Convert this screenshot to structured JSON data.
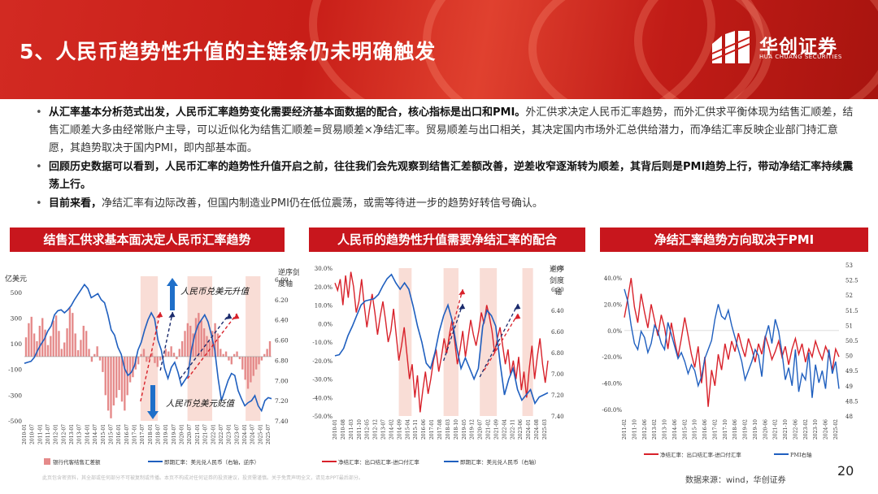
{
  "header": {
    "title": "5、人民币趋势性升值的主链条仍未明确触发",
    "logo_cn": "华创证券",
    "logo_en": "HUA CHUANG SECURITIES"
  },
  "bullets": [
    {
      "bold": "从汇率基本分析范式出发，人民币汇率趋势变化需要经济基本面数据的配合，核心指标是出口和PMI。",
      "text": "外汇供求决定人民币汇率趋势，而外汇供求平衡体现为结售汇顺差，结售汇顺差大多由经常账户主导，可以近似化为结售汇顺差=贸易顺差×净结汇率。贸易顺差与出口相关，其决定国内市场外汇总供给潜力，而净结汇率反映企业部门持汇意愿，其趋势取决于国内PMI，即内部基本面。"
    },
    {
      "bold": "回顾历史数据可以看到，人民币汇率的趋势性升值开启之前，往往我们会先观察到结售汇差额改善，逆差收窄逐渐转为顺差，其背后则是PMI趋势上行，带动净结汇率持续震荡上行。",
      "text": ""
    },
    {
      "bold": "目前来看，",
      "text": "净结汇率有边际改善，但国内制造业PMI仍在低位震荡，或需等待进一步的趋势好转信号确认。"
    }
  ],
  "panels": {
    "left_title": "结售汇供求基本面决定人民币汇率趋势",
    "mid_title": "人民币的趋势性升值需要净结汇率的配合",
    "right_title": "净结汇率趋势方向取决于PMI"
  },
  "footer": {
    "note": "此页包含密资料，其全部或任何部分不可被复制或传播。本页不构成对任何证券的投资建议，投资需谨慎。关于免责声明全文，请见本PPT最后部分。",
    "source": "数据来源：wind，华创证券",
    "page": "20"
  },
  "chart_data": [
    {
      "type": "bar",
      "ylabel_left": "亿美元",
      "ylabel_right": "逆序剑度轴",
      "left_ticks": [
        "500",
        "300",
        "100",
        "-100",
        "-300",
        "-500"
      ],
      "right_ticks": [
        "6.00",
        "6.20",
        "6.40",
        "6.60",
        "6.80",
        "7.00",
        "7.20",
        "7.40"
      ],
      "ylim_left": [
        -500,
        600
      ],
      "ylim_right": [
        7.4,
        6.0
      ],
      "x_ticks": [
        "2010-01",
        "2010-07",
        "2011-01",
        "2011-07",
        "2012-01",
        "2012-07",
        "2013-01",
        "2013-07",
        "2014-01",
        "2014-07",
        "2015-01",
        "2015-07",
        "2016-01",
        "2016-07",
        "2017-01",
        "2017-07",
        "2018-01",
        "2018-07",
        "2019-01",
        "2019-07",
        "2020-01",
        "2020-07",
        "2021-01",
        "2021-07",
        "2022-01",
        "2022-07",
        "2023-01",
        "2023-07",
        "2024-01",
        "2024-07",
        "2025-01",
        "2025-07"
      ],
      "annotations": [
        "人民币兑美元升值",
        "人民币兑美元贬值"
      ],
      "legend": [
        "银行代客结售汇差额",
        "即期汇率：美元兑人民币（右轴，逆序）"
      ],
      "colors": {
        "bar": "#e58a8a",
        "line": "#1f5fbf",
        "shade": "#f9ddd6",
        "arrow_up": "#1f6fc9",
        "arrow_down": "#1f6fc9"
      },
      "series": [
        {
          "name": "银行代客结售汇差额",
          "values": [
            150,
            260,
            310,
            180,
            120,
            240,
            300,
            210,
            90,
            160,
            280,
            320,
            200,
            60,
            110,
            220,
            380,
            340,
            180,
            50,
            130,
            240,
            200,
            60,
            -40,
            20,
            80,
            -30,
            -120,
            -300,
            -420,
            -480,
            -380,
            -320,
            -260,
            -350,
            -420,
            -300,
            -200,
            -160,
            -100,
            -60,
            20,
            60,
            -40,
            -20,
            30,
            -50,
            -80,
            -30,
            10,
            60,
            40,
            80,
            30,
            -20,
            60,
            120,
            200,
            260,
            240,
            180,
            300,
            340,
            280,
            220,
            160,
            120,
            200,
            260,
            180,
            60,
            20,
            40,
            -30,
            -60,
            20,
            40,
            -20,
            -100,
            -180,
            -250,
            -200,
            -150,
            -100,
            -60,
            -30,
            20,
            60,
            120
          ]
        },
        {
          "name": "即期汇率：美元兑人民币（右轴，逆序）",
          "values": [
            6.83,
            6.82,
            6.81,
            6.77,
            6.7,
            6.64,
            6.59,
            6.51,
            6.46,
            6.35,
            6.31,
            6.3,
            6.33,
            6.3,
            6.26,
            6.2,
            6.15,
            6.1,
            6.05,
            6.09,
            6.18,
            6.16,
            6.14,
            6.2,
            6.23,
            6.35,
            6.5,
            6.55,
            6.67,
            6.74,
            6.88,
            6.95,
            6.92,
            6.85,
            6.7,
            6.62,
            6.5,
            6.4,
            6.33,
            6.39,
            6.6,
            6.7,
            6.88,
            6.98,
            6.87,
            6.82,
            6.92,
            7.05,
            7.0,
            6.95,
            6.7,
            6.55,
            6.45,
            6.4,
            6.35,
            6.42,
            6.55,
            6.7,
            6.98,
            7.2,
            7.1,
            7.0,
            6.93,
            6.95,
            7.1,
            7.18,
            7.25,
            7.22,
            7.2,
            7.15,
            7.25,
            7.3,
            7.2,
            7.17,
            7.18
          ]
        }
      ]
    },
    {
      "type": "line",
      "left_ticks": [
        "30.0%",
        "20.0%",
        "10.0%",
        "0.0%",
        "-10.0%",
        "-20.0%",
        "-30.0%",
        "-40.0%",
        "-50.0%"
      ],
      "right_ticks": [
        "6.00",
        "6.20",
        "6.40",
        "6.60",
        "6.80",
        "7.00",
        "7.20",
        "7.40"
      ],
      "ylabel_right": "逆序剑度轴",
      "ylim_left": [
        -50,
        30
      ],
      "ylim_right": [
        7.4,
        6.0
      ],
      "x_ticks": [
        "2010-01",
        "2010-08",
        "2011-03",
        "2011-10",
        "2012-05",
        "2012-12",
        "2013-07",
        "2014-02",
        "2014-09",
        "2015-04",
        "2015-11",
        "2016-06",
        "2017-01",
        "2017-08",
        "2018-03",
        "2018-10",
        "2019-05",
        "2019-12",
        "2020-07",
        "2021-02",
        "2021-09",
        "2022-04",
        "2022-11",
        "2023-06",
        "2024-01",
        "2024-08",
        "2025-03"
      ],
      "legend": [
        "净结汇率：出口结汇率-进口付汇率",
        "即期汇率：美元兑人民币（右轴）"
      ],
      "colors": {
        "s1": "#d8212a",
        "s2": "#1f5fbf",
        "shade": "#f9ddd6"
      },
      "series": [
        {
          "name": "净结汇率：出口结汇率-进口付汇率",
          "values": [
            22,
            18,
            24,
            10,
            26,
            14,
            28,
            20,
            6,
            12,
            24,
            10,
            -2,
            8,
            16,
            6,
            -6,
            4,
            12,
            2,
            -10,
            -4,
            8,
            -6,
            -20,
            -12,
            -2,
            -16,
            -30,
            -22,
            -40,
            -28,
            -48,
            -36,
            -26,
            -38,
            -30,
            -20,
            -14,
            -26,
            -18,
            -8,
            -16,
            -6,
            2,
            -10,
            -22,
            -14,
            -4,
            -18,
            -8,
            2,
            -6,
            -12,
            -4,
            6,
            0,
            10,
            4,
            -4,
            -16,
            -8,
            -2,
            -12,
            -22,
            -14,
            -28,
            -20,
            -30,
            -18,
            -36,
            -26,
            -40,
            -24,
            -12,
            -30,
            -18,
            -8,
            -22,
            -32,
            -20
          ]
        },
        {
          "name": "即期汇率：美元兑人民币（右轴）",
          "values": [
            6.83,
            6.82,
            6.76,
            6.64,
            6.55,
            6.45,
            6.35,
            6.31,
            6.3,
            6.29,
            6.25,
            6.17,
            6.1,
            6.06,
            6.14,
            6.2,
            6.14,
            6.2,
            6.36,
            6.55,
            6.7,
            6.9,
            6.95,
            6.8,
            6.6,
            6.45,
            6.35,
            6.5,
            6.75,
            6.95,
            6.85,
            6.95,
            7.05,
            6.95,
            6.55,
            6.4,
            6.45,
            6.55,
            6.9,
            7.2,
            7.05,
            6.95,
            7.15,
            7.25,
            7.2,
            7.15,
            7.28,
            7.22,
            7.2,
            7.18
          ]
        }
      ]
    },
    {
      "type": "line",
      "left_ticks": [
        "40.0%",
        "20.0%",
        "0.0%",
        "-20.0%",
        "-40.0%",
        "-60.0%"
      ],
      "right_ticks": [
        "53",
        "52.5",
        "52",
        "51.5",
        "51",
        "50.5",
        "50",
        "49.5",
        "49",
        "48.5",
        "48"
      ],
      "ylim_left": [
        -65,
        50
      ],
      "ylim_right": [
        48,
        53
      ],
      "x_ticks": [
        "2011-02",
        "2011-10",
        "2012-06",
        "2013-02",
        "2013-10",
        "2014-06",
        "2015-02",
        "2015-10",
        "2016-06",
        "2017-02",
        "2017-10",
        "2018-06",
        "2019-02",
        "2019-10",
        "2020-06",
        "2021-02",
        "2021-10",
        "2022-06",
        "2023-02",
        "2023-10",
        "2024-06",
        "2025-02"
      ],
      "legend": [
        "净结汇率：出口结汇率-进口付汇率",
        "PMI右轴"
      ],
      "colors": {
        "s1": "#d8212a",
        "s2": "#1f5fbf"
      },
      "series": [
        {
          "name": "净结汇率：出口结汇率-进口付汇率",
          "values": [
            10,
            24,
            40,
            18,
            6,
            28,
            14,
            2,
            20,
            8,
            -4,
            12,
            2,
            -14,
            6,
            -8,
            -20,
            -6,
            10,
            -4,
            -18,
            -28,
            -12,
            -40,
            -20,
            -58,
            -30,
            -42,
            -18,
            -30,
            -10,
            -22,
            -8,
            -16,
            -2,
            -12,
            -20,
            -6,
            -14,
            -24,
            -10,
            -18,
            -4,
            -12,
            -22,
            -16,
            -8,
            -20,
            -12,
            -26,
            -14,
            -6,
            -18,
            -10,
            -24,
            -14,
            -20,
            -8,
            -16,
            -22,
            -12,
            -18,
            -30,
            -14,
            -20
          ]
        },
        {
          "name": "PMI右轴",
          "values": [
            52.2,
            51.8,
            51.0,
            50.4,
            50.2,
            50.8,
            50.6,
            50.1,
            50.4,
            51.0,
            50.8,
            50.4,
            50.2,
            51.1,
            50.7,
            50.3,
            49.9,
            50.1,
            49.8,
            49.4,
            49.7,
            49.5,
            49.0,
            49.3,
            49.9,
            50.2,
            50.5,
            51.2,
            51.7,
            51.3,
            51.2,
            51.5,
            51.0,
            50.6,
            50.2,
            49.8,
            49.2,
            49.5,
            49.8,
            50.2,
            50.0,
            49.3,
            50.6,
            51.0,
            50.4,
            51.2,
            50.8,
            50.1,
            49.2,
            49.6,
            49.0,
            50.2,
            48.8,
            49.4,
            49.2,
            50.1,
            48.6,
            49.7,
            49.1,
            49.5,
            48.9,
            50.2,
            49.4,
            49.8,
            48.9
          ]
        }
      ]
    }
  ]
}
